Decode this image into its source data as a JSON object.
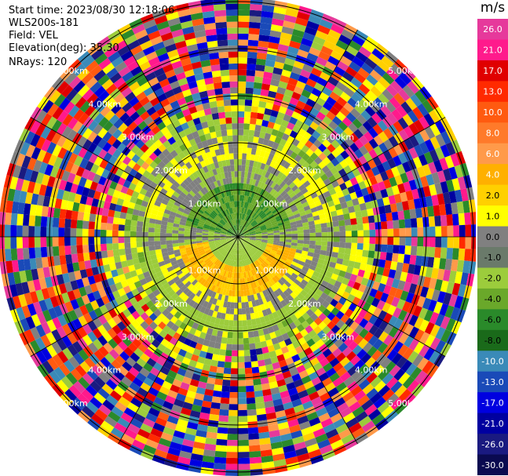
{
  "header": {
    "start_time": "Start time: 2023/08/30 12:18:06",
    "instrument": "WLS200s-181",
    "field": "Field: VEL",
    "elevation": "Elevation(deg): 35.30",
    "nrays": "NRays: 120"
  },
  "range_rings": {
    "labels": [
      "1.00km",
      "2.00km",
      "3.00km",
      "4.00km",
      "5.00km"
    ]
  },
  "colorbar": {
    "unit": "m/s",
    "ticks": [
      "26.0",
      "21.0",
      "17.0",
      "13.0",
      "10.0",
      "8.0",
      "6.0",
      "4.0",
      "2.0",
      "1.0",
      "0.0",
      "-1.0",
      "-2.0",
      "-4.0",
      "-6.0",
      "-8.0",
      "-10.0",
      "-13.0",
      "-17.0",
      "-21.0",
      "-26.0",
      "-30.0"
    ],
    "colors": [
      "#e6399b",
      "#ff1a8c",
      "#e00000",
      "#ff2a00",
      "#ff5a10",
      "#ff7a2a",
      "#ff9a4a",
      "#ffb000",
      "#ffd000",
      "#ffff00",
      "#808080",
      "#6a7a6a",
      "#9ccc3c",
      "#6aa82a",
      "#2a8a2a",
      "#1a6a1a",
      "#3a8ab8",
      "#1a4ab8",
      "#0000e0",
      "#0000a0",
      "#1a1a80",
      "#0a0a50"
    ]
  }
}
